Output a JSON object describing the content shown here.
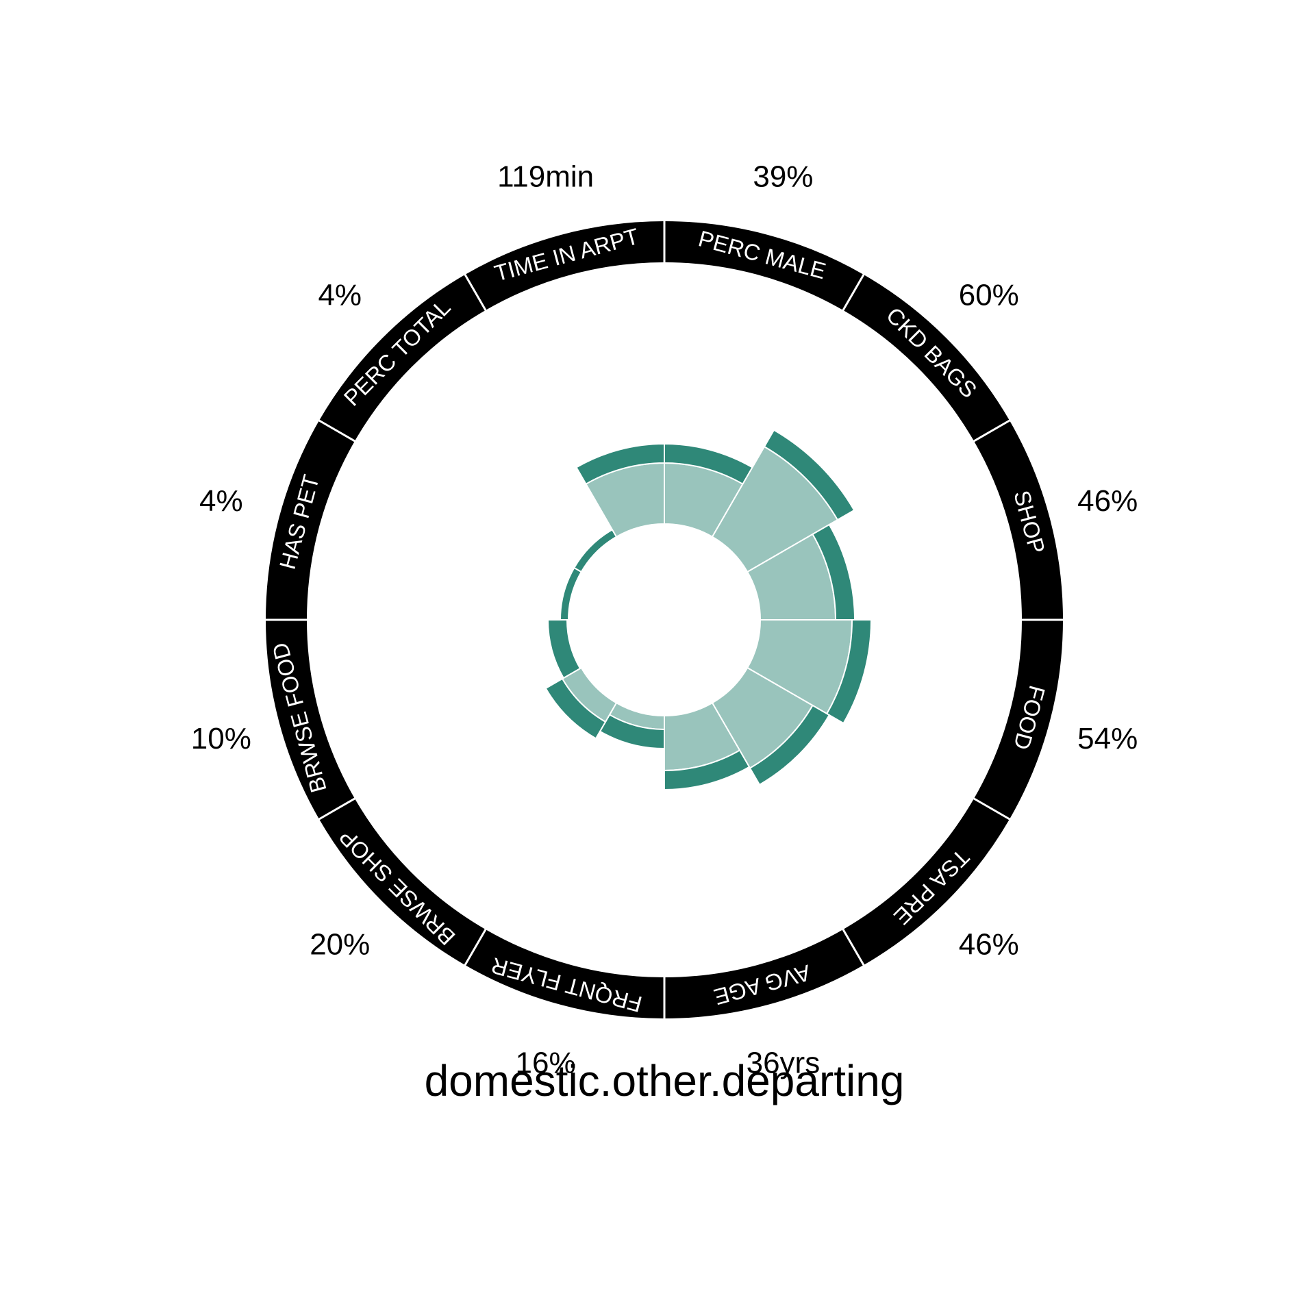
{
  "chart_data": {
    "type": "radial-bar",
    "title": "domestic.other.departing",
    "colors": {
      "inner_bar": "#99c4bc",
      "outer_bar": "#2f8878",
      "ring": "#000000",
      "ring_text": "#ffffff",
      "divider": "#ffffff"
    },
    "categories": [
      {
        "key": "perc_male",
        "label": "PERC MALE",
        "value_label": "39%",
        "value": 0.39
      },
      {
        "key": "ckd_bags",
        "label": "CKD BAGS",
        "value_label": "60%",
        "value": 0.6
      },
      {
        "key": "shop",
        "label": "SHOP",
        "value_label": "46%",
        "value": 0.46
      },
      {
        "key": "food",
        "label": "FOOD",
        "value_label": "54%",
        "value": 0.54
      },
      {
        "key": "tsa_pre",
        "label": "TSA PRE",
        "value_label": "46%",
        "value": 0.46
      },
      {
        "key": "avg_age",
        "label": "AVG AGE",
        "value_label": "36yrs",
        "value": 0.36
      },
      {
        "key": "frqnt_flyer",
        "label": "FRQNT FLYER",
        "value_label": "16%",
        "value": 0.16
      },
      {
        "key": "brwse_shop",
        "label": "BRWSE SHOP",
        "value_label": "20%",
        "value": 0.2
      },
      {
        "key": "brwse_food",
        "label": "BRWSE FOOD",
        "value_label": "10%",
        "value": 0.1
      },
      {
        "key": "has_pet",
        "label": "HAS PET",
        "value_label": "4%",
        "value": 0.04
      },
      {
        "key": "perc_total",
        "label": "PERC TOTAL",
        "value_label": "4%",
        "value": 0.04
      },
      {
        "key": "time_in_arpt",
        "label": "TIME IN ARPT",
        "value_label": "119min",
        "value": 0.39
      }
    ]
  }
}
